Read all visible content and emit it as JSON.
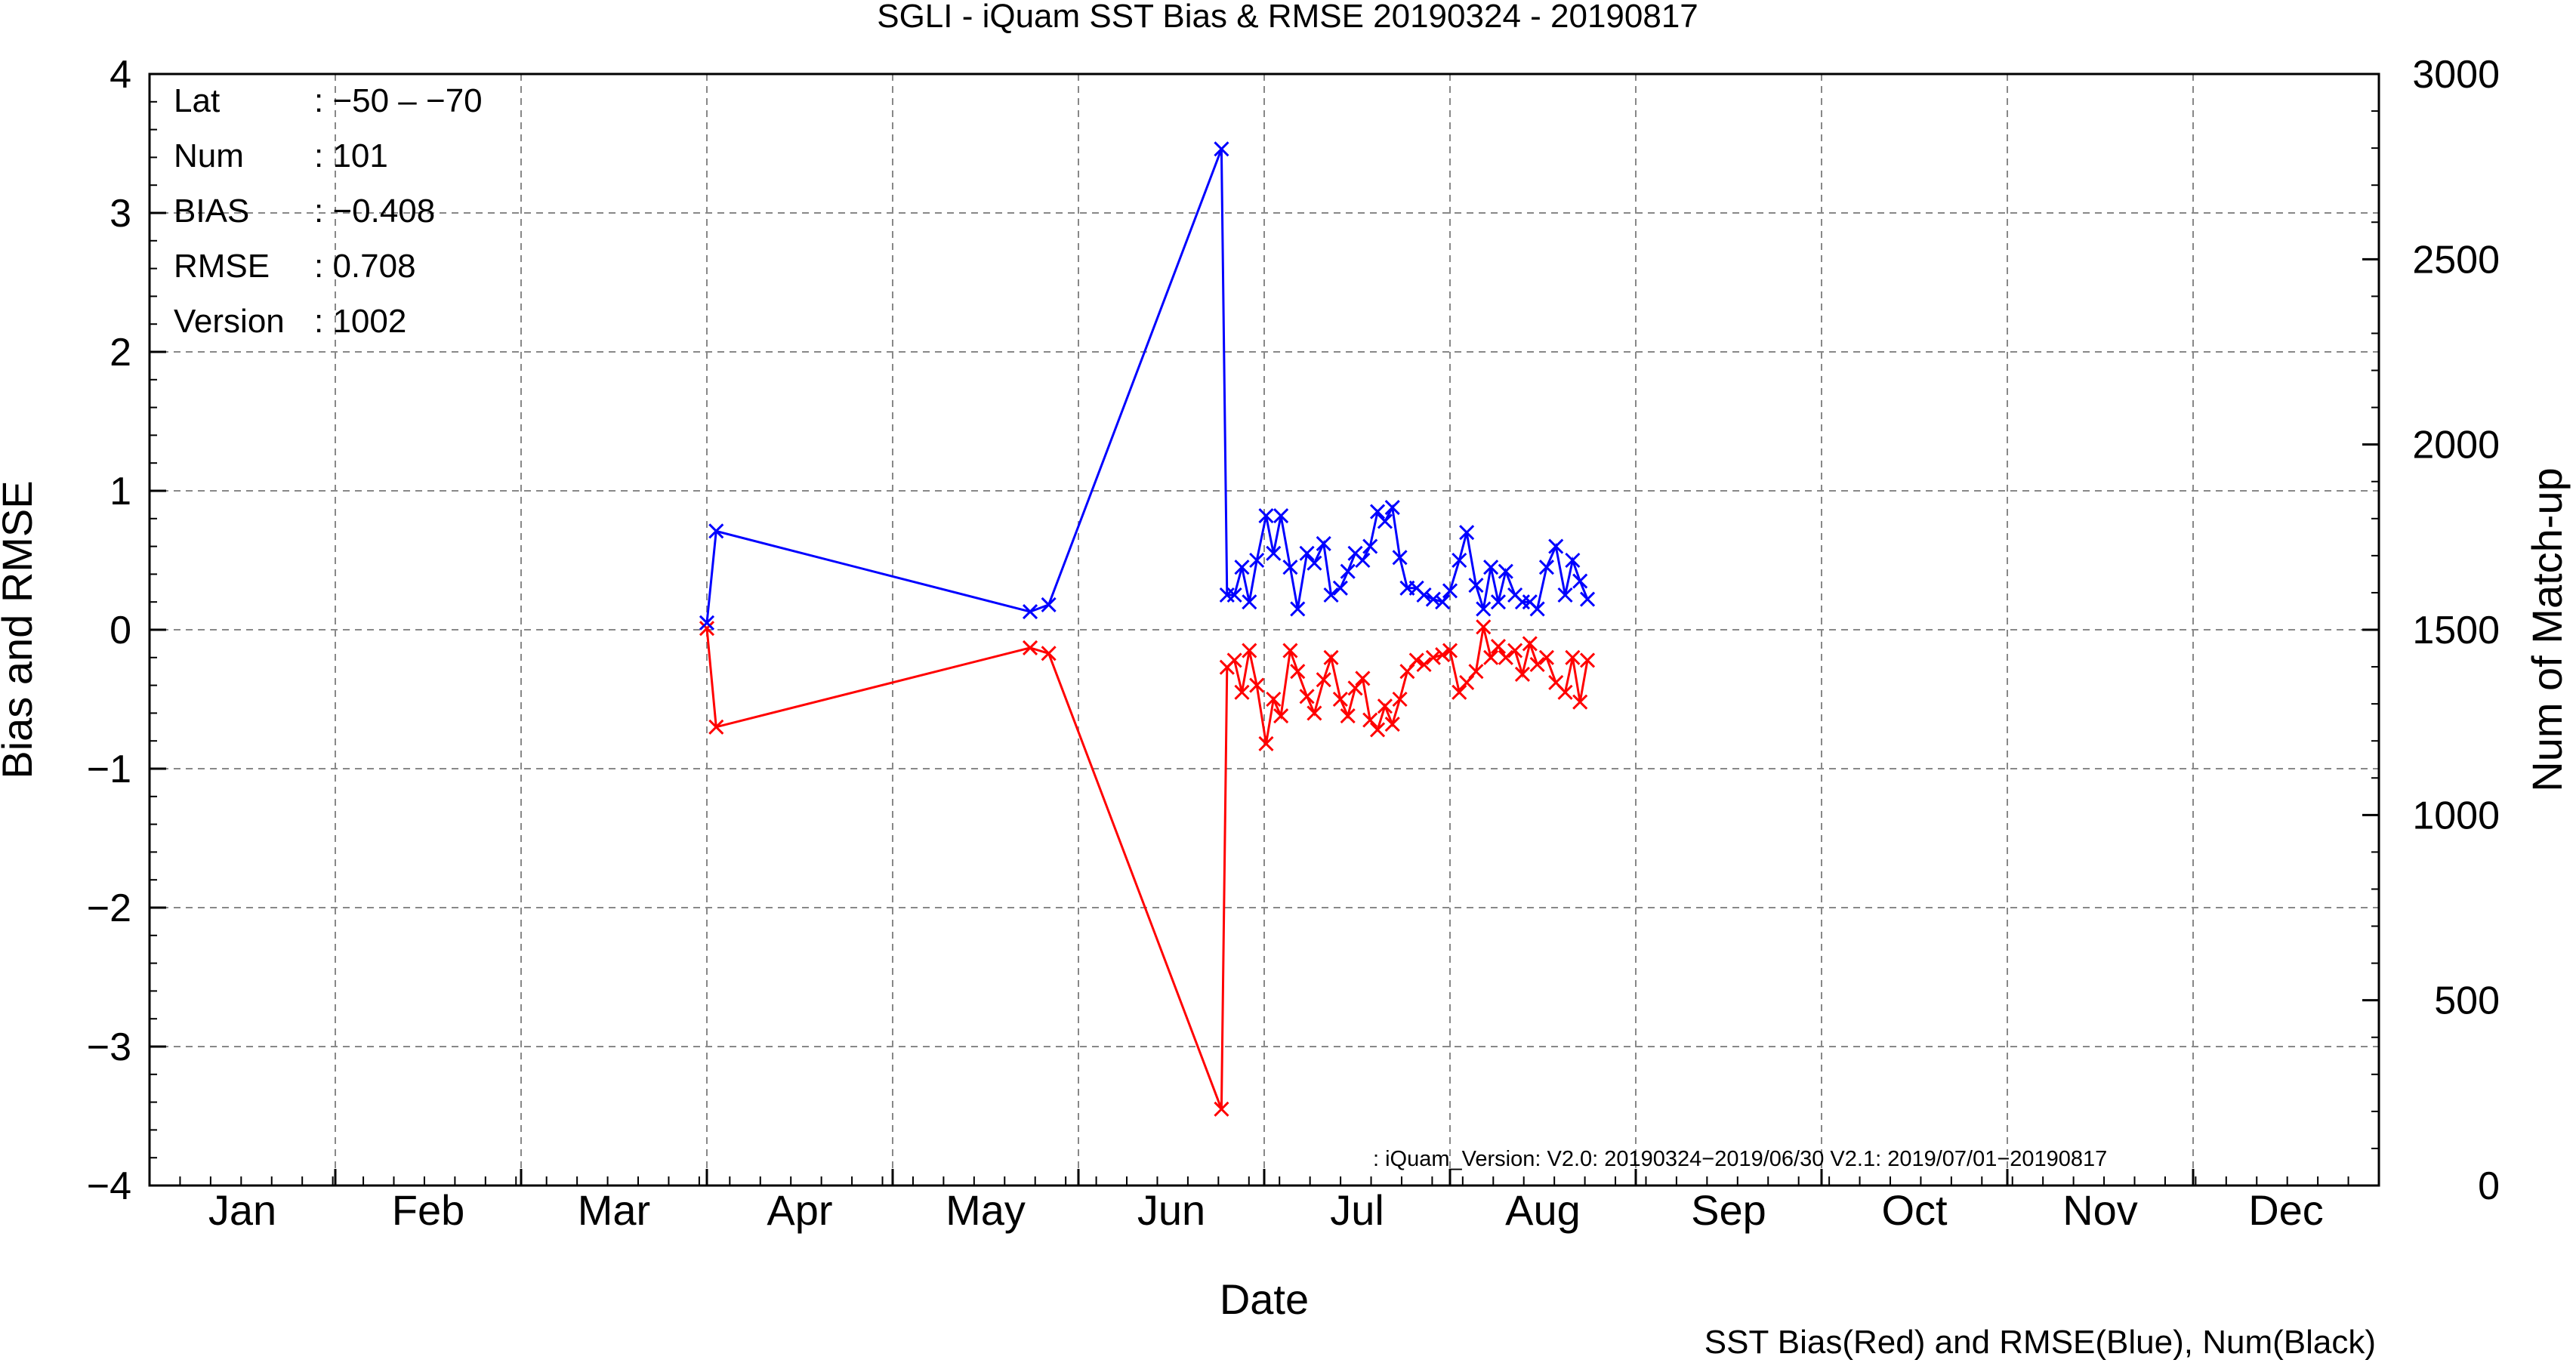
{
  "chart_data": {
    "type": "line",
    "title": "SGLI - iQuam  SST Bias & RMSE 20190324 - 20190817",
    "xlabel": "Date",
    "ylabel": "Bias and RMSE",
    "y2label": "Num of Match-up",
    "ylim": [
      -4,
      4
    ],
    "y2lim": [
      0,
      3000
    ],
    "xlim": [
      0,
      12
    ],
    "x_unit": "months since Jan 1",
    "grid": true,
    "categories": [
      "Jan",
      "Feb",
      "Mar",
      "Apr",
      "May",
      "Jun",
      "Jul",
      "Aug",
      "Sep",
      "Oct",
      "Nov",
      "Dec"
    ],
    "yticks": [
      -4,
      -3,
      -2,
      -1,
      0,
      1,
      2,
      3,
      4
    ],
    "yticks_text": [
      "−4",
      "−3",
      "−2",
      "−1",
      "0",
      "1",
      "2",
      "3",
      "4"
    ],
    "y2ticks": [
      0,
      500,
      1000,
      1500,
      2000,
      2500,
      3000
    ],
    "y2ticks_text": [
      "0",
      "500",
      "1000",
      "1500",
      "2000",
      "2500",
      "3000"
    ],
    "series": [
      {
        "name": "SST Bias",
        "color": "#ff0000",
        "x": [
          3.0,
          3.05,
          4.74,
          4.84,
          5.77,
          5.8,
          5.84,
          5.88,
          5.92,
          5.96,
          6.01,
          6.05,
          6.09,
          6.14,
          6.18,
          6.23,
          6.27,
          6.32,
          6.36,
          6.41,
          6.45,
          6.49,
          6.53,
          6.57,
          6.61,
          6.65,
          6.69,
          6.73,
          6.77,
          6.82,
          6.86,
          6.91,
          6.96,
          7.0,
          7.05,
          7.09,
          7.14,
          7.18,
          7.22,
          7.26,
          7.3,
          7.35,
          7.39,
          7.43,
          7.47,
          7.52,
          7.57,
          7.62,
          7.66,
          7.7,
          7.74
        ],
        "y": [
          0.01,
          -0.7,
          -0.13,
          -0.17,
          -3.45,
          -0.27,
          -0.22,
          -0.45,
          -0.15,
          -0.4,
          -0.82,
          -0.5,
          -0.62,
          -0.15,
          -0.3,
          -0.48,
          -0.6,
          -0.36,
          -0.2,
          -0.5,
          -0.62,
          -0.42,
          -0.35,
          -0.65,
          -0.72,
          -0.55,
          -0.68,
          -0.5,
          -0.3,
          -0.22,
          -0.25,
          -0.2,
          -0.18,
          -0.15,
          -0.45,
          -0.38,
          -0.3,
          0.02,
          -0.2,
          -0.12,
          -0.2,
          -0.15,
          -0.32,
          -0.1,
          -0.25,
          -0.2,
          -0.38,
          -0.45,
          -0.2,
          -0.52,
          -0.22
        ]
      },
      {
        "name": "RMSE",
        "color": "#0000ff",
        "x": [
          3.0,
          3.05,
          4.74,
          4.84,
          5.77,
          5.8,
          5.84,
          5.88,
          5.92,
          5.96,
          6.01,
          6.05,
          6.09,
          6.14,
          6.18,
          6.23,
          6.27,
          6.32,
          6.36,
          6.41,
          6.45,
          6.49,
          6.53,
          6.57,
          6.61,
          6.65,
          6.69,
          6.73,
          6.77,
          6.82,
          6.86,
          6.91,
          6.96,
          7.0,
          7.05,
          7.09,
          7.14,
          7.18,
          7.22,
          7.26,
          7.3,
          7.35,
          7.39,
          7.43,
          7.47,
          7.52,
          7.57,
          7.62,
          7.66,
          7.7,
          7.74
        ],
        "y": [
          0.05,
          0.71,
          0.13,
          0.18,
          3.46,
          0.25,
          0.25,
          0.45,
          0.2,
          0.5,
          0.82,
          0.55,
          0.82,
          0.45,
          0.15,
          0.55,
          0.48,
          0.62,
          0.25,
          0.3,
          0.42,
          0.55,
          0.5,
          0.6,
          0.85,
          0.78,
          0.88,
          0.52,
          0.3,
          0.3,
          0.25,
          0.22,
          0.2,
          0.28,
          0.5,
          0.7,
          0.32,
          0.15,
          0.45,
          0.2,
          0.42,
          0.25,
          0.2,
          0.2,
          0.15,
          0.45,
          0.6,
          0.25,
          0.5,
          0.35,
          0.22
        ]
      }
    ],
    "info_box": [
      {
        "label": "Lat",
        "value": ": −50 – −70"
      },
      {
        "label": "Num",
        "value": ": 101"
      },
      {
        "label": "BIAS",
        "value": ": −0.408"
      },
      {
        "label": "RMSE",
        "value": ": 0.708"
      },
      {
        "label": "Version",
        "value": ": 1002"
      }
    ],
    "annotation": ": iQuam_Version: V2.0: 20190324−2019/06/30 V2.1: 2019/07/01−20190817",
    "footer": "SST Bias(Red) and RMSE(Blue), Num(Black)"
  }
}
